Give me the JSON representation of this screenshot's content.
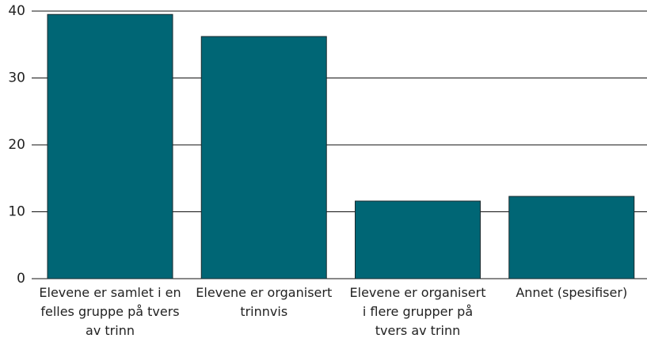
{
  "chart_data": {
    "type": "bar",
    "categories": [
      "Elevene er samlet i en felles gruppe på tvers av trinn",
      "Elevene er organisert trinnvis",
      "Elevene er organisert i flere grupper på tvers av trinn",
      "Annet (spesifiser)"
    ],
    "values": [
      39.5,
      36.2,
      11.6,
      12.3
    ],
    "color": "#006675",
    "ylim": [
      0,
      40
    ],
    "yticks": [
      0,
      10,
      20,
      30,
      40
    ],
    "grid": true
  }
}
